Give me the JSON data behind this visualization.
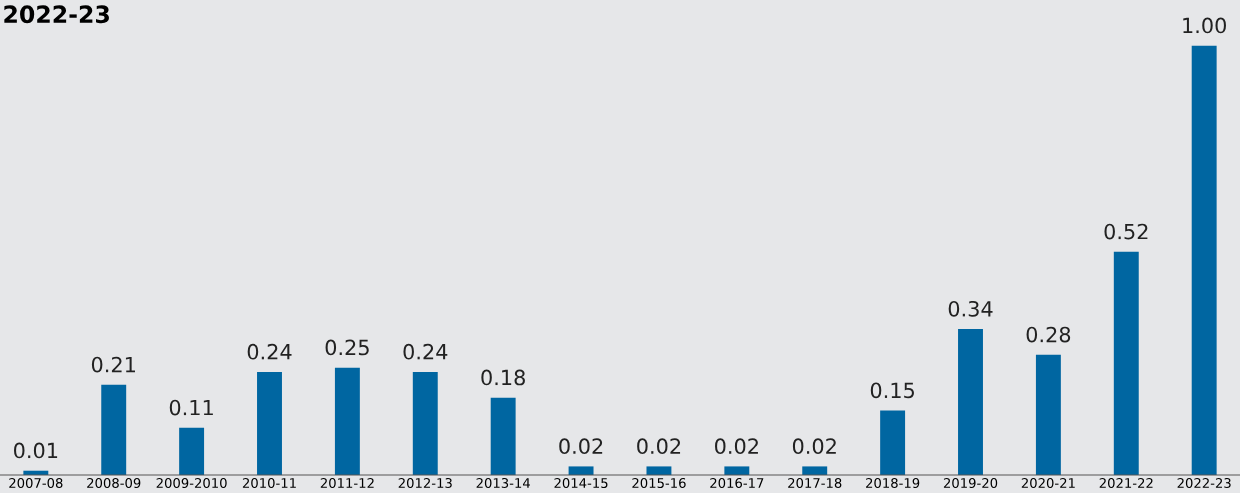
{
  "chart_data": {
    "type": "bar",
    "title": "2022-23",
    "categories": [
      "2007-08",
      "2008-09",
      "2009-2010",
      "2010-11",
      "2011-12",
      "2012-13",
      "2013-14",
      "2014-15",
      "2015-16",
      "2016-17",
      "2017-18",
      "2018-19",
      "2019-20",
      "2020-21",
      "2021-22",
      "2022-23"
    ],
    "values": [
      0.01,
      0.21,
      0.11,
      0.24,
      0.25,
      0.24,
      0.18,
      0.02,
      0.02,
      0.02,
      0.02,
      0.15,
      0.34,
      0.28,
      0.52,
      1.0
    ],
    "value_labels": [
      "0.01",
      "0.21",
      "0.11",
      "0.24",
      "0.25",
      "0.24",
      "0.18",
      "0.02",
      "0.02",
      "0.02",
      "0.02",
      "0.15",
      "0.34",
      "0.28",
      "0.52",
      "1.00"
    ],
    "color": "#0066a1",
    "tick_labels": "x",
    "grid": false,
    "legend": false
  }
}
